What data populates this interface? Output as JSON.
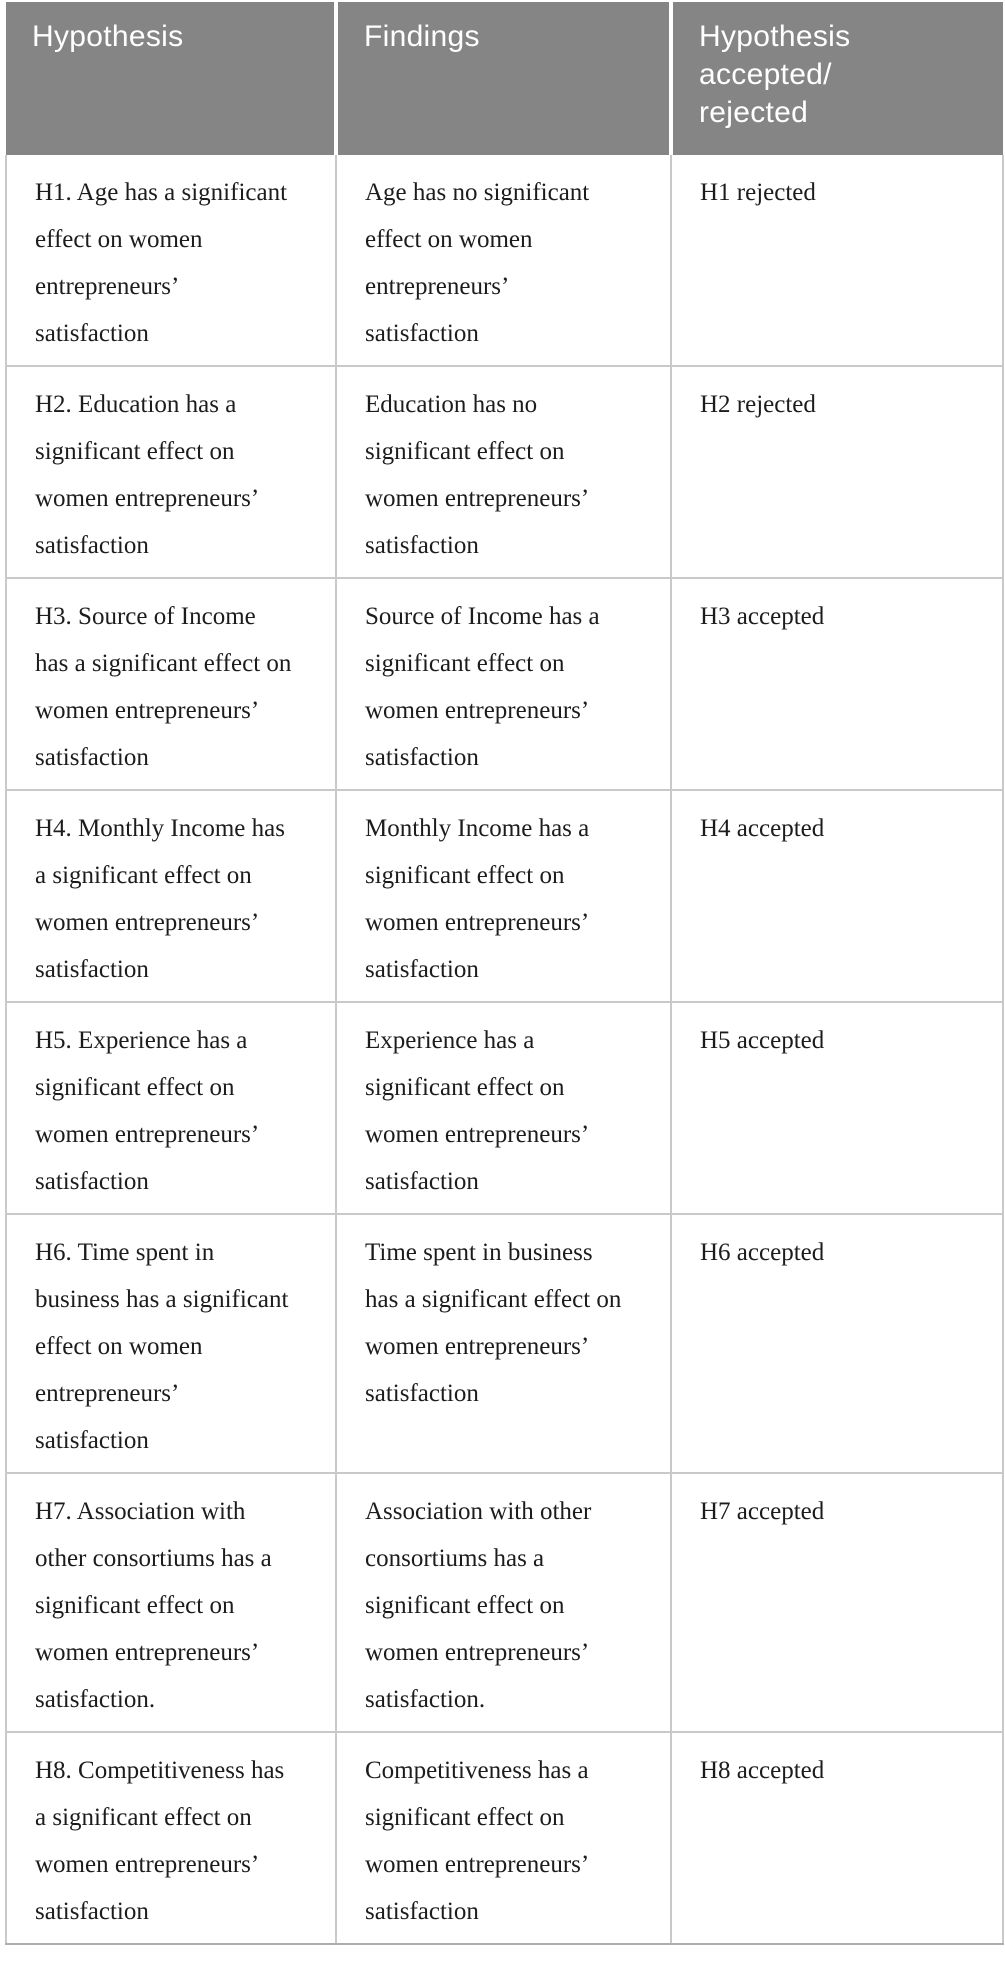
{
  "table": {
    "columns": [
      {
        "label": "Hypothesis"
      },
      {
        "label": "Findings"
      },
      {
        "label": "Hypothesis\naccepted/\nrejected"
      }
    ],
    "rows": [
      {
        "hypothesis": "H1. Age has a significant\neffect on women\nentrepreneurs’\nsatisfaction",
        "findings": "Age has no significant\neffect on women\nentrepreneurs’\nsatisfaction",
        "result": "H1 rejected"
      },
      {
        "hypothesis": "H2. Education has a\nsignificant effect on\nwomen entrepreneurs’\nsatisfaction",
        "findings": "Education has no\nsignificant effect on\nwomen entrepreneurs’\nsatisfaction",
        "result": "H2 rejected"
      },
      {
        "hypothesis": "H3. Source of Income\nhas a significant effect on\nwomen entrepreneurs’\nsatisfaction",
        "findings": "Source of Income has a\nsignificant effect on\nwomen entrepreneurs’\nsatisfaction",
        "result": "H3 accepted"
      },
      {
        "hypothesis": "H4. Monthly Income has\na significant effect on\nwomen entrepreneurs’\nsatisfaction",
        "findings": "Monthly Income has a\nsignificant effect on\nwomen entrepreneurs’\nsatisfaction",
        "result": "H4 accepted"
      },
      {
        "hypothesis": "H5. Experience has a\nsignificant effect on\nwomen entrepreneurs’\nsatisfaction",
        "findings": "Experience has a\nsignificant effect on\nwomen entrepreneurs’\nsatisfaction",
        "result": "H5 accepted"
      },
      {
        "hypothesis": "H6. Time spent in\nbusiness has a significant\neffect on women\nentrepreneurs’\nsatisfaction",
        "findings": "Time spent in business\nhas a significant effect on\nwomen entrepreneurs’\nsatisfaction",
        "result": "H6 accepted"
      },
      {
        "hypothesis": "H7. Association with\nother consortiums has a\nsignificant effect on\nwomen entrepreneurs’\nsatisfaction.",
        "findings": "Association with other\nconsortiums has a\nsignificant effect on\nwomen entrepreneurs’\nsatisfaction.",
        "result": "H7 accepted"
      },
      {
        "hypothesis": "H8. Competitiveness has\na significant effect on\nwomen entrepreneurs’\nsatisfaction",
        "findings": "Competitiveness has a\nsignificant effect on\nwomen entrepreneurs’\nsatisfaction",
        "result": "H8 accepted"
      }
    ]
  },
  "colors": {
    "header_bg": "#858585",
    "header_text": "#ffffff",
    "body_text": "#1c1c1c",
    "grid_line": "#c9c9c9",
    "bottom_line": "#aeaeae"
  }
}
